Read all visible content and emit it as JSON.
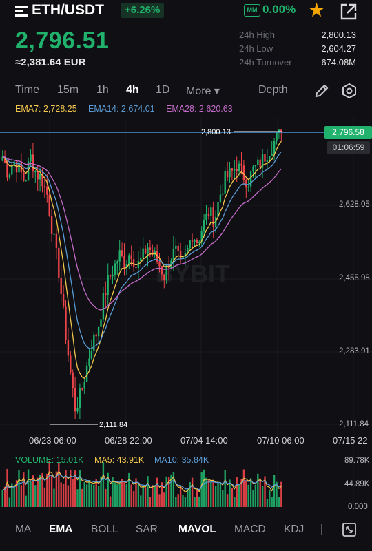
{
  "header": {
    "pair": "ETH/USDT",
    "change": "+6.26%",
    "mm_label": "MM",
    "mm_value": "0.00%",
    "price": "2,796.51",
    "fiat_price": "≈2,381.64 EUR",
    "stats": [
      {
        "label": "24h High",
        "value": "2,800.13"
      },
      {
        "label": "24h Low",
        "value": "2,604.27"
      },
      {
        "label": "24h Turnover",
        "value": "674.08M"
      }
    ]
  },
  "intervals": {
    "items": [
      "Time",
      "15m",
      "1h",
      "4h",
      "1D",
      "More ▾"
    ],
    "active": "4h",
    "depth": "Depth"
  },
  "indicators": {
    "ema7": "EMA7: 2,728.25",
    "ema14": "EMA14: 2,674.01",
    "ema28": "EMA28: 2,620.63"
  },
  "chart_data": {
    "type": "candlestick",
    "y_axis_labels": [
      "2,628.05",
      "2,455.98",
      "2,283.91",
      "2,111.84"
    ],
    "ylim": [
      2111.84,
      2800.13
    ],
    "x_axis_labels": [
      "06/23 06:00",
      "06/28 22:00",
      "07/04 14:00",
      "07/10 06:00",
      "07/15 22"
    ],
    "high_marker": "2,800.13",
    "low_marker": "2,111.84",
    "last_price_tag": "2,796.58",
    "countdown": "01:06:59",
    "watermark": "BYBIT",
    "colors": {
      "up": "#20b26c",
      "down": "#ef454a",
      "ema7": "#f3c74d",
      "ema14": "#5b9bd5",
      "ema28": "#c46bc8"
    },
    "price_path": [
      2740,
      2700,
      2730,
      2710,
      2680,
      2740,
      2700,
      2690,
      2650,
      2560,
      2480,
      2360,
      2250,
      2150,
      2180,
      2240,
      2300,
      2330,
      2400,
      2450,
      2480,
      2510,
      2490,
      2520,
      2480,
      2500,
      2530,
      2510,
      2490,
      2460,
      2500,
      2520,
      2480,
      2510,
      2560,
      2540,
      2580,
      2610,
      2590,
      2650,
      2690,
      2700,
      2720,
      2700,
      2680,
      2710,
      2720,
      2740,
      2760,
      2780,
      2796
    ]
  },
  "volume": {
    "legend": "VOLUME: 15.01K",
    "ma5": "MA5: 43.91K",
    "ma10": "MA10: 35.84K",
    "axis_labels": [
      "89.78K",
      "44.89K",
      "0.000"
    ]
  },
  "bottom_bar": {
    "items": [
      "MA",
      "EMA",
      "BOLL",
      "SAR",
      "MAVOL",
      "MACD",
      "KDJ"
    ],
    "active": [
      "EMA",
      "MAVOL"
    ]
  }
}
